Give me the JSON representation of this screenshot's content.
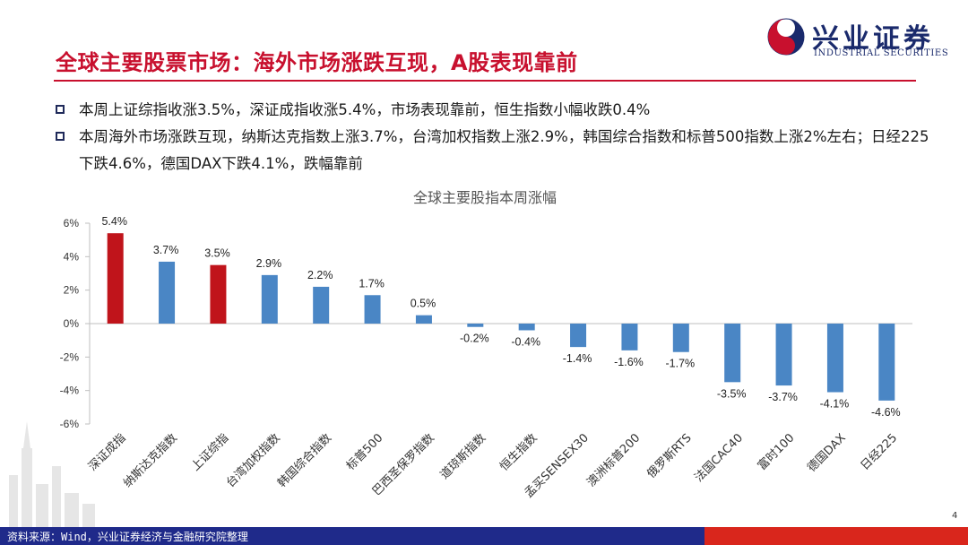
{
  "header": {
    "title": "全球主要股票市场：海外市场涨跌互现，A股表现靠前",
    "logo_cn": "兴业证券",
    "logo_en": "INDUSTRIAL SECURITIES",
    "brand_color": "#c8102e",
    "logo_color": "#1a2a6c"
  },
  "bullets": [
    "本周上证综指收涨3.5%，深证成指收涨5.4%，市场表现靠前，恒生指数小幅收跌0.4%",
    "本周海外市场涨跌互现，纳斯达克指数上涨3.7%，台湾加权指数上涨2.9%，韩国综合指数和标普500指数上涨2%左右；日经225下跌4.6%，德国DAX下跌4.1%，跌幅靠前"
  ],
  "chart_data": {
    "type": "bar",
    "title": "全球主要股指本周涨幅",
    "categories": [
      "深证成指",
      "纳斯达克指数",
      "上证综指",
      "台湾加权指数",
      "韩国综合指数",
      "标普500",
      "巴西圣保罗指数",
      "道琼斯指数",
      "恒生指数",
      "孟买SENSEX30",
      "澳洲标普200",
      "俄罗斯RTS",
      "法国CAC40",
      "富时100",
      "德国DAX",
      "日经225"
    ],
    "values": [
      5.4,
      3.7,
      3.5,
      2.9,
      2.2,
      1.7,
      0.5,
      -0.2,
      -0.4,
      -1.4,
      -1.6,
      -1.7,
      -3.5,
      -3.7,
      -4.1,
      -4.6
    ],
    "value_labels": [
      "5.4%",
      "3.7%",
      "3.5%",
      "2.9%",
      "2.2%",
      "1.7%",
      "0.5%",
      "-0.2%",
      "-0.4%",
      "-1.4%",
      "-1.6%",
      "-1.7%",
      "-3.5%",
      "-3.7%",
      "-4.1%",
      "-4.6%"
    ],
    "highlight": [
      true,
      false,
      true,
      false,
      false,
      false,
      false,
      false,
      false,
      false,
      false,
      false,
      false,
      false,
      false,
      false
    ],
    "ylim": [
      -6,
      6
    ],
    "yticks": [
      6,
      4,
      2,
      0,
      -2,
      -4,
      -6
    ],
    "ytick_labels": [
      "6%",
      "4%",
      "2%",
      "0%",
      "-2%",
      "-4%",
      "-6%"
    ],
    "colors": {
      "highlight": "#c0141b",
      "normal": "#4a86c5"
    },
    "grid": false,
    "legend": "none"
  },
  "footer": {
    "source": "资料来源：Wind，兴业证券经济与金融研究院整理",
    "page": "4"
  }
}
